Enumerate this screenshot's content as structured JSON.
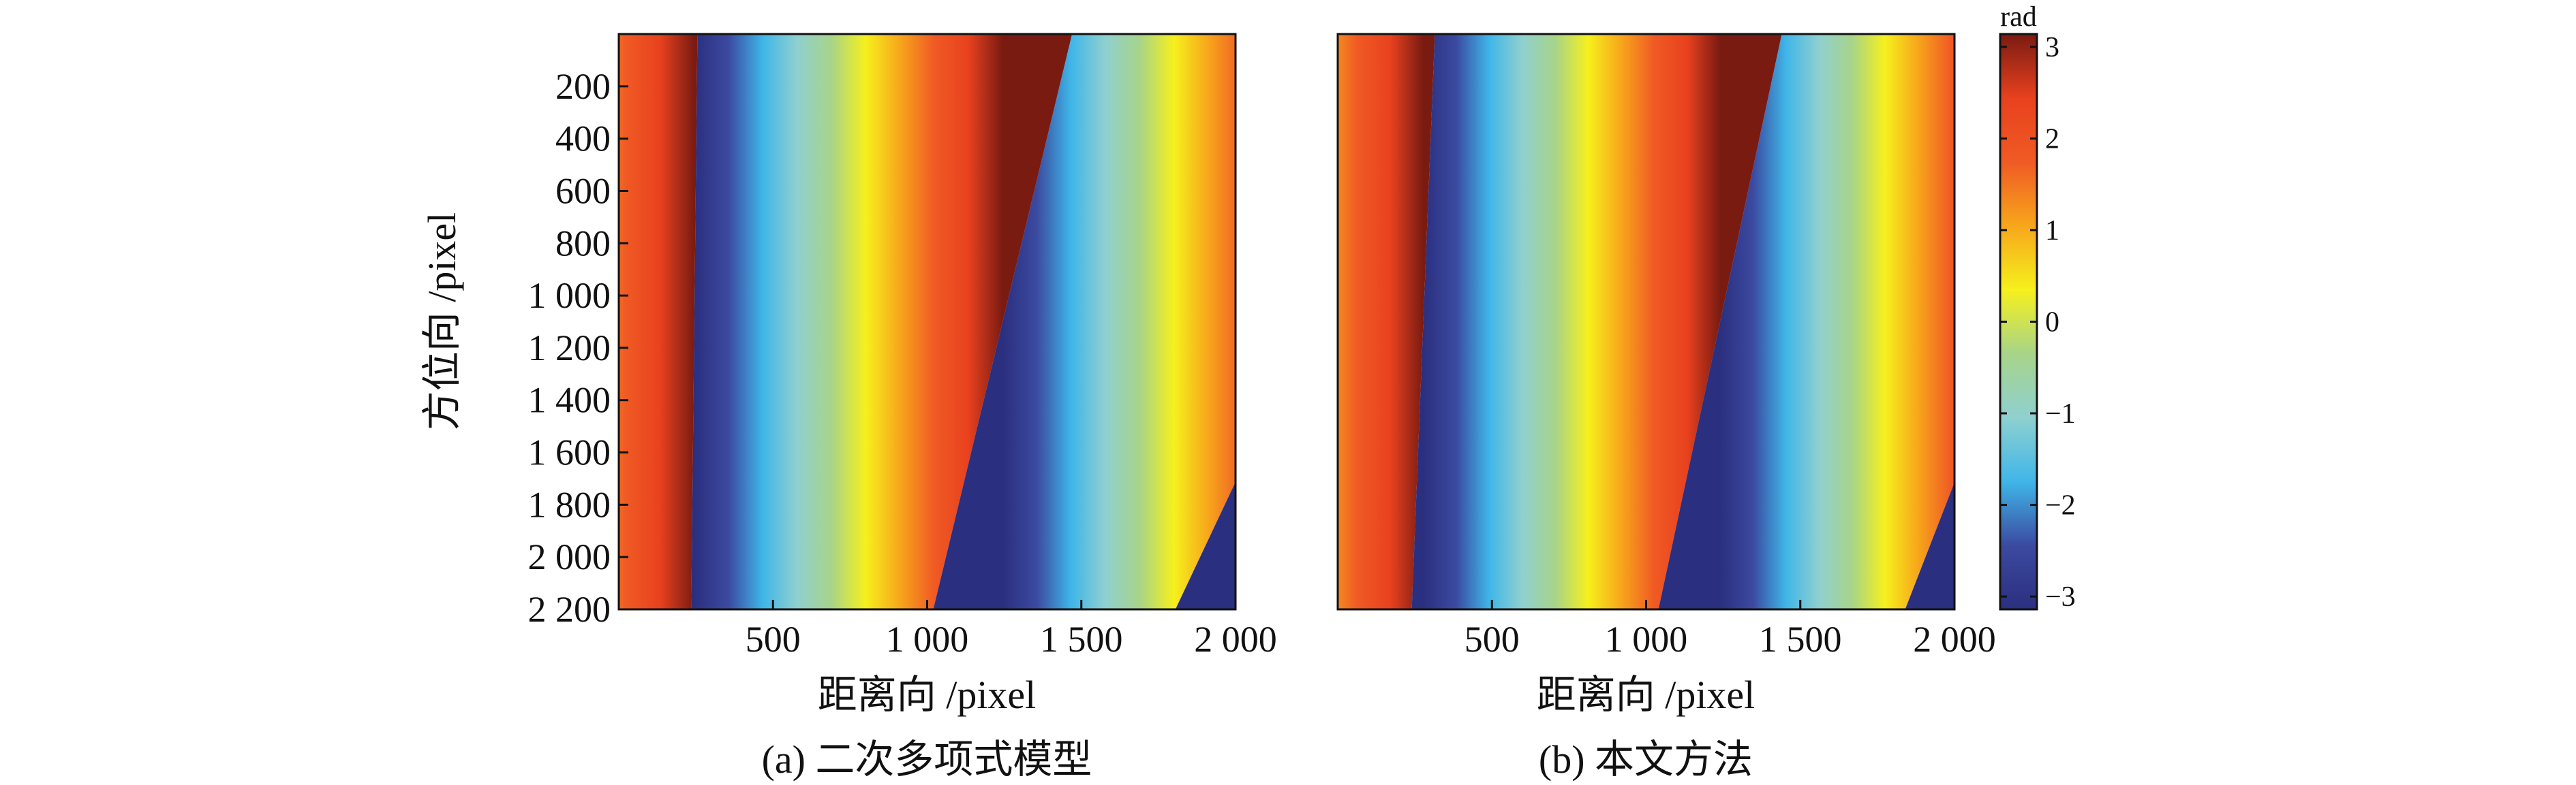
{
  "chart_data": [
    {
      "type": "heatmap",
      "caption": "(a) 二次多项式模型",
      "xlabel": "距离向 /pixel",
      "ylabel": "方位向 /pixel",
      "xlim": [
        0,
        2000
      ],
      "ylim": [
        0,
        2200
      ],
      "xticks": [
        500,
        1000,
        1500,
        2000
      ],
      "xtick_labels": [
        "500",
        "1 000",
        "1 500",
        "2 000"
      ],
      "yticks": [
        200,
        400,
        600,
        800,
        1000,
        1200,
        1400,
        1600,
        1800,
        2000,
        2200
      ],
      "ytick_labels": [
        "200",
        "400",
        "600",
        "800",
        "1 000",
        "1 200",
        "1 400",
        "1 600",
        "1 800",
        "2 000",
        "2 200"
      ],
      "phase_wraps_top": [
        255,
        1470
      ],
      "phase_wraps_bottom": [
        235,
        1020,
        1820
      ],
      "value_range": [
        -3.14,
        3.14
      ]
    },
    {
      "type": "heatmap",
      "caption": "(b) 本文方法",
      "xlabel": "距离向 /pixel",
      "xlim": [
        0,
        2000
      ],
      "ylim": [
        0,
        2200
      ],
      "xticks": [
        500,
        1000,
        1500,
        2000
      ],
      "xtick_labels": [
        "500",
        "1 000",
        "1 500",
        "2 000"
      ],
      "phase_wraps_top": [
        315,
        1440
      ],
      "phase_wraps_bottom": [
        240,
        1040,
        1850
      ],
      "value_range": [
        -3.14,
        3.14
      ]
    }
  ],
  "colorbar": {
    "unit": "rad",
    "ticks": [
      3,
      2,
      1,
      0,
      -1,
      -2,
      -3
    ],
    "tick_labels": [
      "3",
      "2",
      "1",
      "0",
      "−1",
      "−2",
      "−3"
    ],
    "range": [
      -3.14,
      3.14
    ],
    "colormap": [
      "#2b2f7f",
      "#3b4aa0",
      "#3fb6e8",
      "#8fd0d0",
      "#a7d489",
      "#f6f01c",
      "#f7a61b",
      "#f05a24",
      "#e8411e",
      "#7a1b12"
    ]
  }
}
